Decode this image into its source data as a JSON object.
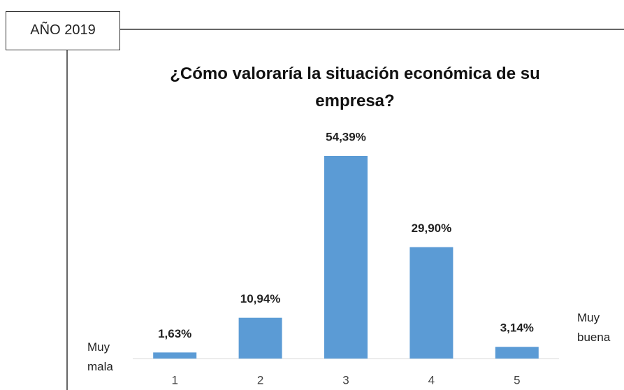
{
  "chart_data": {
    "type": "bar",
    "tag": "AÑO 2019",
    "title": "¿Cómo valoraría la situación económica de su empresa?",
    "categories": [
      "1",
      "2",
      "3",
      "4",
      "5"
    ],
    "values": [
      1.63,
      10.94,
      54.39,
      29.9,
      3.14
    ],
    "value_labels": [
      "1,63%",
      "10,94%",
      "54,39%",
      "29,90%",
      "3,14%"
    ],
    "color": "#5b9bd5",
    "annotations": [
      "Muy mala",
      "Muy buena"
    ]
  }
}
